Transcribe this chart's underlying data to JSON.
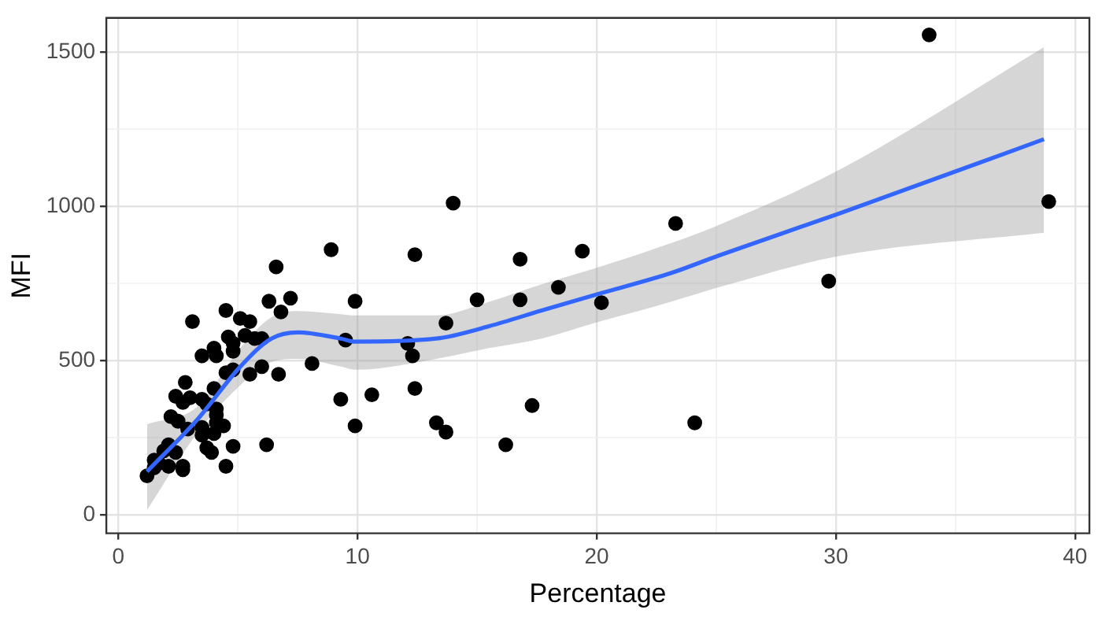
{
  "chart_data": {
    "type": "scatter",
    "xlabel": "Percentage",
    "ylabel": "MFI",
    "xlim": [
      -0.5,
      40.6
    ],
    "ylim": [
      -60,
      1610
    ],
    "xticks": [
      0,
      {
        "value": 5,
        "label": null
      },
      10,
      {
        "value": 15,
        "label": null
      },
      20,
      {
        "value": 25,
        "label": null
      },
      30,
      {
        "value": 35,
        "label": null
      },
      40
    ],
    "yticks": [
      0,
      {
        "value": 250,
        "label": null
      },
      500,
      {
        "value": 750,
        "label": null
      },
      1000,
      {
        "value": 1250,
        "label": null
      },
      1500
    ],
    "grid": true,
    "legend": false,
    "series": [
      {
        "marker": "circle",
        "color": "#000000",
        "x": [
          33.9,
          38.9,
          29.7,
          24.1,
          23.3,
          14.0,
          8.9,
          12.4,
          16.8,
          19.4,
          6.6,
          7.2,
          6.8,
          9.9,
          15.0,
          16.8,
          18.4,
          20.2,
          13.7,
          9.5,
          12.1,
          12.3,
          8.1,
          6.7,
          9.3,
          10.6,
          12.4,
          9.9,
          13.3,
          13.7,
          17.3,
          16.2,
          6.3,
          3.1,
          4.5,
          5.1,
          5.5,
          4.6,
          4.8,
          5.3,
          5.7,
          6.0,
          4.0,
          3.5,
          4.1,
          4.8,
          6.0,
          5.5,
          4.5,
          4.8,
          2.8,
          4.0,
          2.4,
          2.7,
          3.0,
          3.5,
          3.7,
          4.1,
          2.2,
          2.5,
          2.9,
          3.5,
          4.1,
          4.1,
          4.4,
          3.5,
          4.0,
          2.1,
          1.9,
          2.4,
          3.7,
          3.9,
          4.8,
          6.2,
          1.5,
          1.7,
          2.1,
          2.7,
          2.7,
          4.5,
          1.2,
          1.5
        ],
        "values": [
          1555,
          1015,
          757,
          298,
          944,
          1010,
          859,
          843,
          828,
          854,
          803,
          702,
          657,
          692,
          697,
          697,
          737,
          687,
          621,
          566,
          555,
          515,
          490,
          455,
          374,
          389,
          409,
          288,
          298,
          268,
          354,
          227,
          692,
          626,
          662,
          636,
          626,
          576,
          556,
          581,
          571,
          571,
          540,
          515,
          515,
          530,
          480,
          455,
          460,
          470,
          429,
          409,
          384,
          364,
          379,
          374,
          359,
          343,
          318,
          303,
          278,
          283,
          323,
          298,
          288,
          258,
          263,
          227,
          207,
          202,
          217,
          202,
          222,
          227,
          177,
          167,
          157,
          157,
          146,
          157,
          126,
          152
        ]
      },
      {
        "type": "line",
        "marker": "none",
        "color": "#3366ff",
        "x": [
          1.2,
          3.3,
          5.1,
          6.4,
          7.5,
          9.3,
          9.9,
          13.3,
          15.5,
          17.7,
          19.9,
          23.1,
          25.1,
          30.1,
          38.7
        ],
        "values": [
          140,
          308,
          480,
          571,
          591,
          571,
          561,
          571,
          611,
          662,
          712,
          783,
          840,
          975,
          1217
        ],
        "lower": [
          15,
          265,
          420,
          495,
          505,
          480,
          470,
          505,
          540,
          571,
          621,
          690,
          737,
          838,
          914
        ],
        "upper": [
          293,
          350,
          540,
          640,
          660,
          650,
          646,
          646,
          690,
          747,
          798,
          880,
          939,
          1116,
          1515
        ]
      }
    ]
  }
}
